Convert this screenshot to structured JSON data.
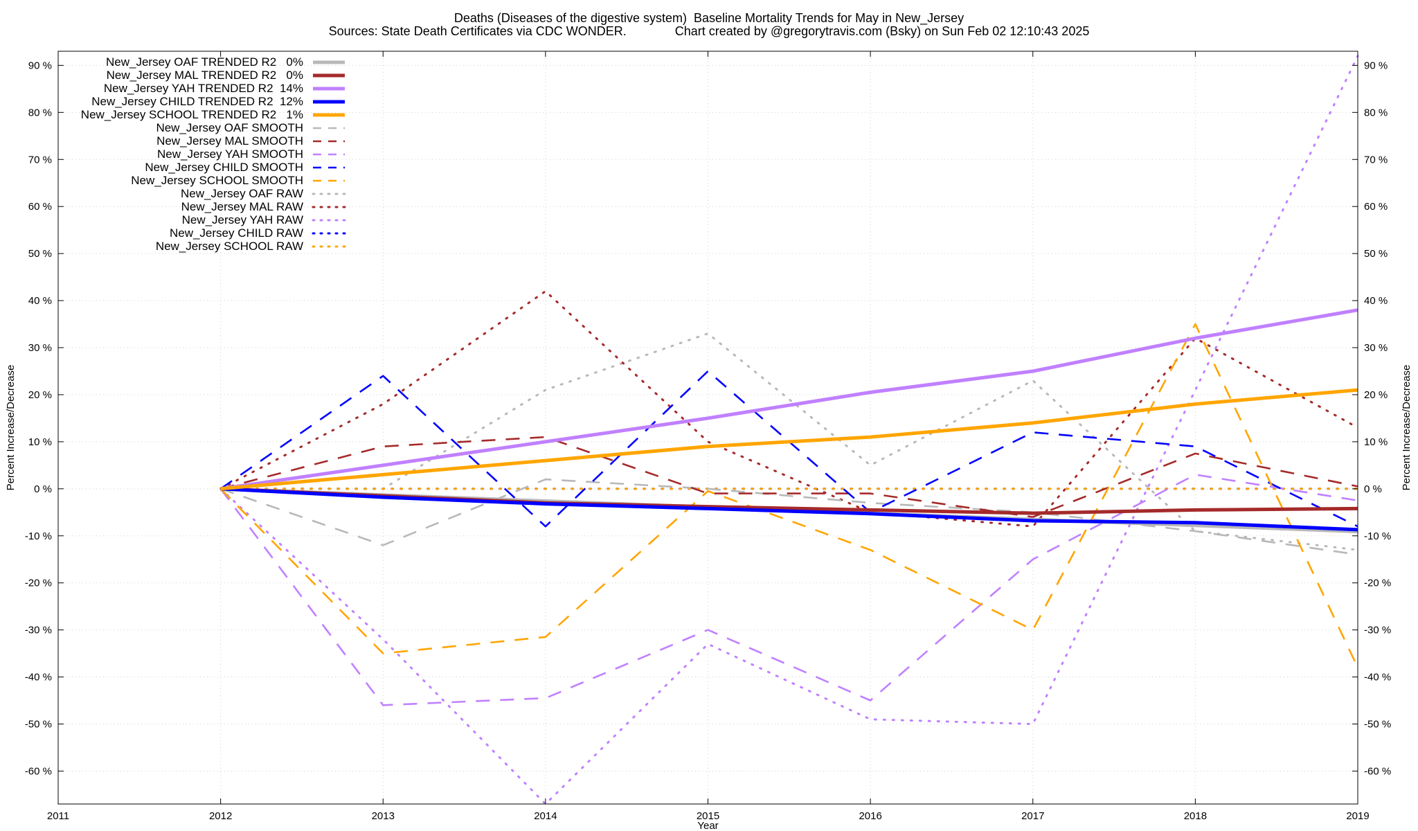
{
  "chart_data": {
    "type": "line",
    "title": "Deaths (Diseases of the digestive system)  Baseline Mortality Trends for May in New_Jersey",
    "subtitle": "Sources: State Death Certificates via CDC WONDER.              Chart created by @gregorytravis.com (Bsky) on Sun Feb 02 12:10:43 2025",
    "xlabel": "Year",
    "ylabel": "Percent Increase/Decrease",
    "y2label": "Percent Increase/Decrease",
    "xlim": [
      2011,
      2019
    ],
    "ylim": [
      -67,
      93
    ],
    "x_ticks": [
      2011,
      2012,
      2013,
      2014,
      2015,
      2016,
      2017,
      2018,
      2019
    ],
    "y_ticks": [
      {
        "v": 90,
        "label": "90 %"
      },
      {
        "v": 80,
        "label": "80 %"
      },
      {
        "v": 70,
        "label": "70 %"
      },
      {
        "v": 60,
        "label": "60 %"
      },
      {
        "v": 50,
        "label": "50 %"
      },
      {
        "v": 40,
        "label": "40 %"
      },
      {
        "v": 30,
        "label": "30 %"
      },
      {
        "v": 20,
        "label": "20 %"
      },
      {
        "v": 10,
        "label": "10 %"
      },
      {
        "v": 0,
        "label": "0 %"
      },
      {
        "v": -10,
        "label": "-10 %"
      },
      {
        "v": -20,
        "label": "-20 %"
      },
      {
        "v": -30,
        "label": "-30 %"
      },
      {
        "v": -40,
        "label": "-40 %"
      },
      {
        "v": -50,
        "label": "-50 %"
      },
      {
        "v": -60,
        "label": "-60 %"
      }
    ],
    "grid": true,
    "legend_position": "top-left",
    "x": [
      2012,
      2013,
      2014,
      2015,
      2016,
      2017,
      2018,
      2019
    ],
    "series": [
      {
        "name": "New_Jersey OAF TRENDED R2   0%",
        "style": "solid",
        "color": "#b8b8b8",
        "values": [
          0,
          -1.3,
          -2.6,
          -3.9,
          -5.2,
          -6.5,
          -7.8,
          -9.1
        ]
      },
      {
        "name": "New_Jersey MAL TRENDED R2   0%",
        "style": "solid",
        "color": "#a52a2a",
        "values": [
          0,
          -1.5,
          -3.0,
          -3.8,
          -4.5,
          -5.2,
          -4.5,
          -4.2
        ]
      },
      {
        "name": "New_Jersey YAH TRENDED R2  14%",
        "style": "solid",
        "color": "#c080ff",
        "values": [
          0,
          5,
          10,
          15,
          20.5,
          25,
          32,
          38
        ]
      },
      {
        "name": "New_Jersey CHILD TRENDED R2  12%",
        "style": "solid",
        "color": "#0000ff",
        "values": [
          0,
          -1.8,
          -3.2,
          -4.2,
          -5.3,
          -6.8,
          -7.2,
          -8.7
        ]
      },
      {
        "name": "New_Jersey SCHOOL TRENDED R2   1%",
        "style": "solid",
        "color": "#ffa500",
        "values": [
          0,
          3,
          6,
          9,
          11,
          14,
          18,
          21
        ]
      },
      {
        "name": "New_Jersey OAF SMOOTH",
        "style": "dashed",
        "color": "#b8b8b8",
        "values": [
          0,
          -12,
          2,
          0,
          -3,
          -5,
          -9,
          -14
        ]
      },
      {
        "name": "New_Jersey MAL SMOOTH",
        "style": "dashed",
        "color": "#a52a2a",
        "values": [
          0,
          9,
          11,
          -1,
          -1,
          -6,
          7.5,
          0.5
        ]
      },
      {
        "name": "New_Jersey YAH SMOOTH",
        "style": "dashed",
        "color": "#c080ff",
        "values": [
          0,
          -46,
          -44.5,
          -30,
          -45,
          -15,
          3,
          -2.5
        ]
      },
      {
        "name": "New_Jersey CHILD SMOOTH",
        "style": "dashed",
        "color": "#0000ff",
        "values": [
          0,
          24,
          -8,
          25,
          -5,
          12,
          9,
          -8
        ]
      },
      {
        "name": "New_Jersey SCHOOL SMOOTH",
        "style": "dashed",
        "color": "#ffa500",
        "values": [
          0,
          -35,
          -31.5,
          -0.5,
          -13,
          -30,
          35,
          -38
        ]
      },
      {
        "name": "New_Jersey OAF RAW",
        "style": "dotted",
        "color": "#b8b8b8",
        "values": [
          0,
          0,
          21,
          33,
          5,
          23,
          -9,
          -13
        ]
      },
      {
        "name": "New_Jersey MAL RAW",
        "style": "dotted",
        "color": "#a52a2a",
        "values": [
          0,
          18,
          42,
          10,
          -5,
          -8,
          32,
          13
        ]
      },
      {
        "name": "New_Jersey YAH RAW",
        "style": "dotted",
        "color": "#c080ff",
        "values": [
          0,
          -32,
          -67,
          -33,
          -49,
          -50,
          21,
          92
        ]
      },
      {
        "name": "New_Jersey CHILD RAW",
        "style": "dotted",
        "color": "#0000ff",
        "values": [
          0,
          0,
          0,
          0,
          0,
          0,
          0,
          0
        ]
      },
      {
        "name": "New_Jersey SCHOOL RAW",
        "style": "dotted",
        "color": "#ffa500",
        "values": [
          0,
          0,
          0,
          0,
          0,
          0,
          0,
          0
        ]
      }
    ]
  }
}
